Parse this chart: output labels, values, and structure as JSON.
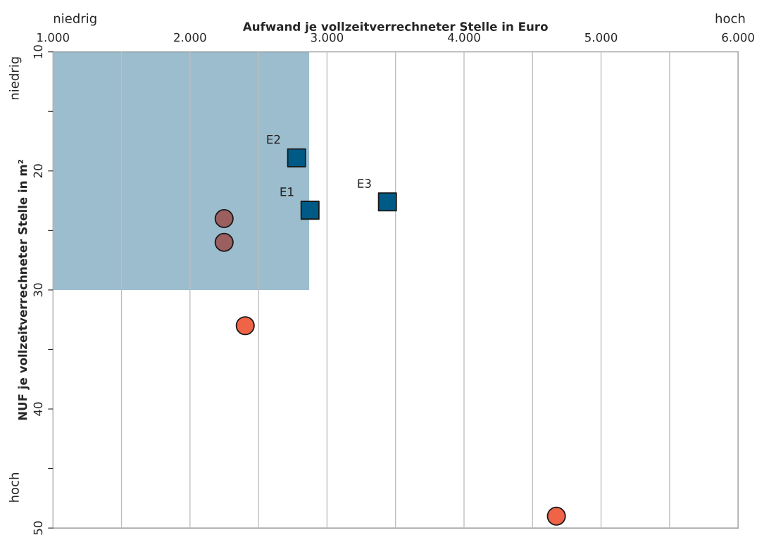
{
  "chart_data": {
    "type": "scatter",
    "xlabel": "Aufwand je vollzeitverrechneter Stelle in Euro",
    "ylabel": "NUF je vollzeitverrechneter Stelle in m²",
    "xlim": [
      1000,
      6000
    ],
    "xticks": [
      {
        "value": 1000,
        "label": "1.000"
      },
      {
        "value": 1500,
        "label": null
      },
      {
        "value": 2000,
        "label": "2.000"
      },
      {
        "value": 2500,
        "label": null
      },
      {
        "value": 3000,
        "label": "3.000"
      },
      {
        "value": 3500,
        "label": null
      },
      {
        "value": 4000,
        "label": "4.000"
      },
      {
        "value": 4500,
        "label": null
      },
      {
        "value": 5000,
        "label": "5.000"
      },
      {
        "value": 5500,
        "label": null
      },
      {
        "value": 6000,
        "label": "6.000"
      }
    ],
    "ylim": [
      50,
      10
    ],
    "yticks": [
      10,
      {
        "value": 15,
        "label": null
      },
      20,
      {
        "value": 25,
        "label": null
      },
      30,
      {
        "value": 35,
        "label": null
      },
      40,
      {
        "value": 45,
        "label": null
      },
      50
    ],
    "grid": "x",
    "legend": false,
    "series": [
      {
        "type": "area",
        "color": "#9bbdcd",
        "x": [
          1000,
          2870
        ],
        "values": [
          30,
          30
        ]
      },
      {
        "color": "#005a86",
        "marker": "square",
        "x": [
          2876,
          2778,
          3441
        ],
        "values": [
          23.3,
          18.9,
          22.6
        ]
      },
      {
        "color": "#9b5f5f",
        "marker": "circle",
        "x": [
          2249,
          2249
        ],
        "values": [
          24.0,
          26.0
        ]
      },
      {
        "color": "#ef6347",
        "marker": "circle",
        "x": [
          2403,
          4674
        ],
        "values": [
          33.0,
          49.0
        ]
      }
    ],
    "annotations": [
      {
        "text": "E1",
        "x": 2876,
        "y": 23.3
      },
      {
        "text": "E2",
        "x": 2778,
        "y": 18.9
      },
      {
        "text": "E3",
        "x": 3441,
        "y": 22.6
      },
      "niedrig",
      "hoch",
      "niedrig",
      "hoch"
    ]
  }
}
